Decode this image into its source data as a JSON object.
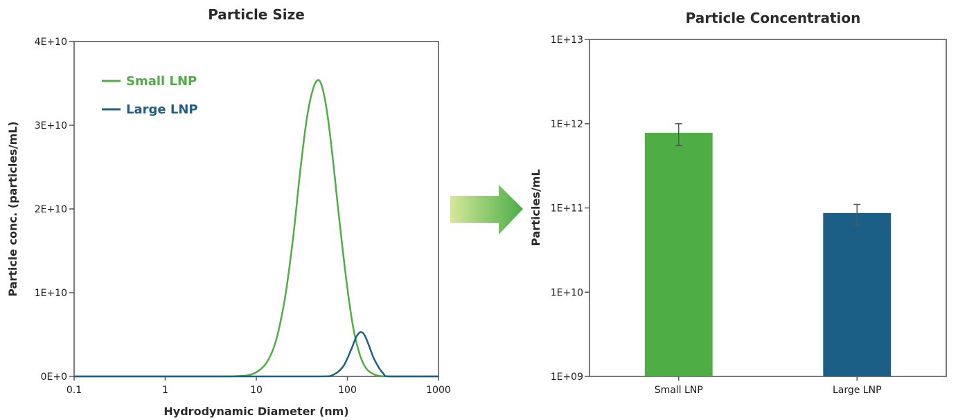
{
  "chart_data": [
    {
      "type": "line",
      "title": "Particle Size",
      "xlabel": "Hydrodynamic Diameter (nm)",
      "ylabel": "Particle conc. (particles/mL)",
      "x_scale": "log",
      "xlim": [
        0.1,
        1000
      ],
      "ylim": [
        0,
        40000000000
      ],
      "x_ticks": [
        "0.1",
        "1",
        "10",
        "100",
        "1000"
      ],
      "y_ticks": [
        "0E+0",
        "1E+10",
        "2E+10",
        "3E+10",
        "4E+10"
      ],
      "legend_position": "top-left",
      "grid": false,
      "series": [
        {
          "name": "Small LNP",
          "color": "#4fad45",
          "x": [
            0.1,
            1,
            5,
            10,
            15,
            20,
            25,
            30,
            35,
            40,
            46,
            52,
            60,
            70,
            80,
            100,
            120,
            150,
            200,
            300,
            1000
          ],
          "y": [
            0,
            0,
            0,
            500000000,
            3000000000,
            8500000000,
            16000000000,
            24000000000,
            30000000000,
            33500000000,
            35300000000,
            34800000000,
            31500000000,
            25500000000,
            19500000000,
            10500000000,
            5000000000,
            1500000000,
            200000000,
            0,
            0
          ]
        },
        {
          "name": "Large LNP",
          "color": "#1f5f85",
          "x": [
            0.1,
            10,
            50,
            70,
            90,
            110,
            125,
            140,
            155,
            175,
            200,
            250,
            300,
            1000
          ],
          "y": [
            0,
            0,
            0,
            200000000,
            1200000000,
            3200000000,
            4700000000,
            5300000000,
            4900000000,
            3500000000,
            1900000000,
            300000000,
            0,
            0
          ]
        }
      ]
    },
    {
      "type": "bar",
      "title": "Particle Concentration",
      "xlabel": "",
      "ylabel": "Particles/mL",
      "y_scale": "log",
      "ylim": [
        1000000000,
        10000000000000
      ],
      "y_ticks": [
        "1E+09",
        "1E+10",
        "1E+11",
        "1E+12",
        "1E+13"
      ],
      "categories": [
        "Small LNP",
        "Large LNP"
      ],
      "values": [
        780000000000,
        87000000000
      ],
      "error_low": [
        550000000000,
        62000000000
      ],
      "error_high": [
        1000000000000,
        110000000000
      ],
      "colors": [
        "#4fad45",
        "#1b5e86"
      ],
      "grid": false
    }
  ],
  "arrow": {
    "color_start": "#d6e89a",
    "color_end": "#4aac47"
  }
}
